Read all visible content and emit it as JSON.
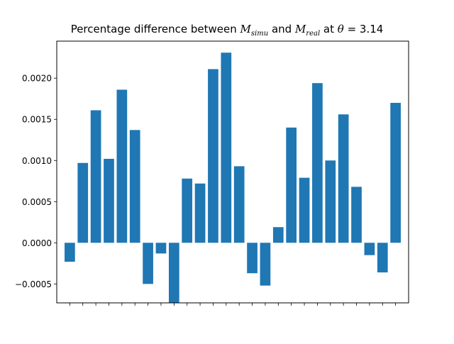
{
  "chart_data": {
    "type": "bar",
    "title": {
      "prefix": "Percentage difference between ",
      "m1": "M",
      "m1_sub": "simu",
      "mid": " and ",
      "m2": "M",
      "m2_sub": "real",
      "pre_theta": " at ",
      "theta": "θ",
      "suffix": " = 3.14"
    },
    "xlabel": "",
    "ylabel": "",
    "ylim": [
      -0.00073,
      0.00245
    ],
    "yticks": [
      -0.0005,
      0.0,
      0.0005,
      0.001,
      0.0015,
      0.002
    ],
    "ytick_labels": [
      "−0.0005",
      "0.0000",
      "0.0005",
      "0.0010",
      "0.0015",
      "0.0020"
    ],
    "categories_note": "x tick labels are overlapping and illegible in the original",
    "categories": [
      "",
      "",
      "",
      "",
      "",
      "",
      "",
      "",
      "",
      "",
      "",
      "",
      "",
      "",
      "",
      "",
      "",
      "",
      "",
      "",
      "",
      "",
      "",
      "",
      "",
      ""
    ],
    "values": [
      -0.00023,
      0.00097,
      0.00161,
      0.00102,
      0.00186,
      0.00137,
      -0.0005,
      -0.00013,
      -0.00073,
      0.00078,
      0.00072,
      0.00211,
      0.00231,
      0.00093,
      -0.00037,
      -0.00052,
      0.00019,
      0.0014,
      0.00079,
      0.00194,
      0.001,
      0.00156,
      0.00068,
      -0.00015,
      -0.00036,
      0.0017
    ],
    "bar_color": "#1f77b4",
    "grid": false,
    "legend": "none"
  }
}
